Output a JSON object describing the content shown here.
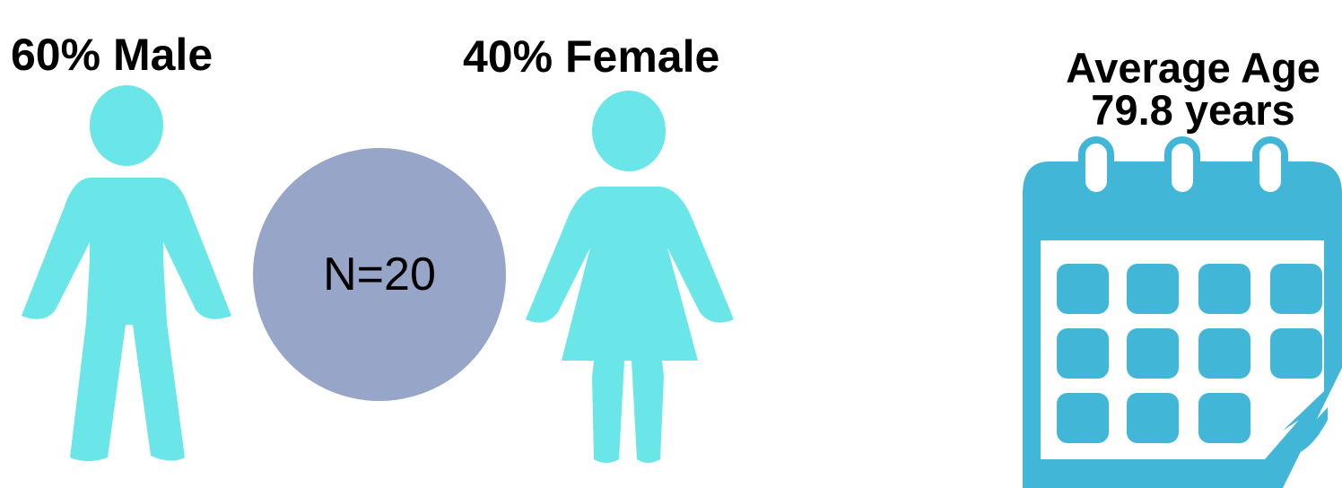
{
  "male": {
    "label": "60% Male",
    "icon": "male-person-icon"
  },
  "female": {
    "label": "40% Female",
    "icon": "female-person-icon"
  },
  "sample": {
    "label": "N=20"
  },
  "age": {
    "line1": "Average Age",
    "line2": "79.8 years",
    "icon": "calendar-icon"
  },
  "colors": {
    "person": "#6ae5e8",
    "circle": "#97a6c8",
    "calendar": "#42b6d6"
  }
}
